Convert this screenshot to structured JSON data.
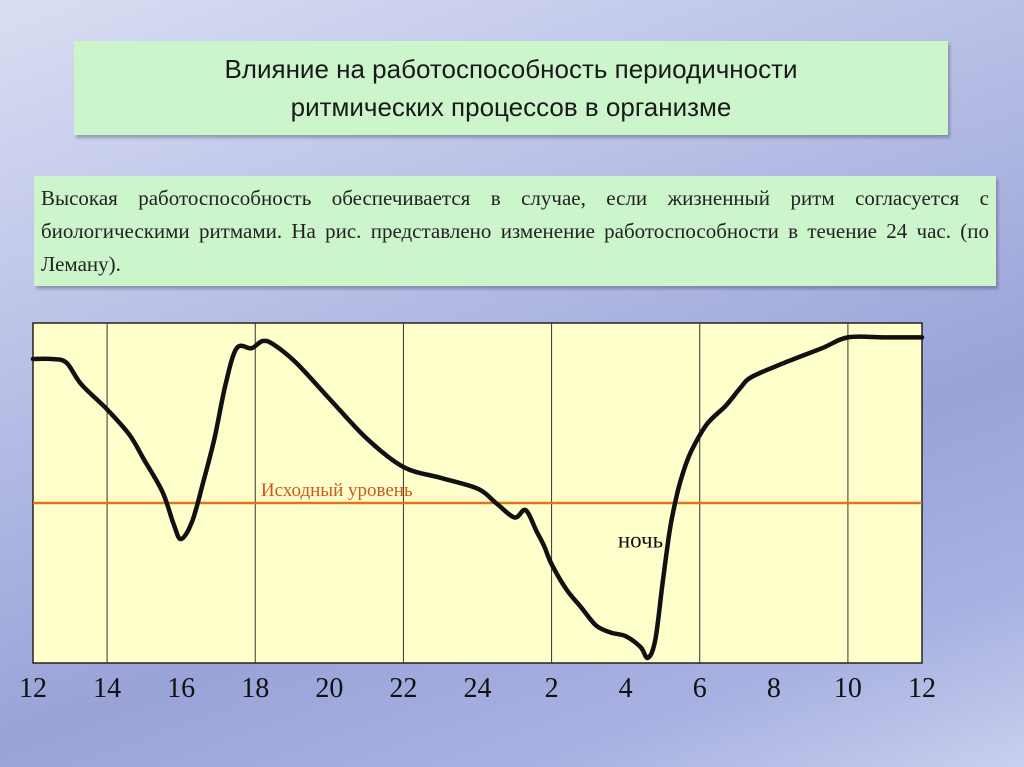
{
  "title": {
    "line1": "Влияние на работоспособность периодичности",
    "line2": "ритмических процессов в организме"
  },
  "description": "Высокая работоспособность обеспечивается в случае, если жизненный ритм согласуется с биологическими ритмами. На рис. представлено изменение работоспособности в течение 24 час. (по Леману).",
  "colors": {
    "plot_bg": "#ffffcc",
    "curve": "#111111",
    "baseline": "#e0761c",
    "baseline_label": "#cc5a1a",
    "title_box": "#ccf5cc"
  },
  "chart_data": {
    "type": "line",
    "title": "",
    "xlabel": "",
    "ylabel": "",
    "x_ticks": [
      "12",
      "14",
      "16",
      "18",
      "20",
      "22",
      "24",
      "2",
      "4",
      "6",
      "8",
      "10",
      "12"
    ],
    "x_unit": "hours elapsed from 12:00",
    "xlim": [
      0,
      24
    ],
    "y_scale": "relative (baseline = 0)",
    "ylim": [
      -4.6,
      5.3
    ],
    "grid": "vertical lines at hours 2, 6, 10, 14, 18, 22",
    "baseline": {
      "label": "Исходный уровень",
      "value": 0
    },
    "annotations": [
      {
        "text": "ночь",
        "x": 16.4,
        "y": -1.1
      }
    ],
    "series": [
      {
        "x": [
          0,
          0.5,
          0.9,
          1.3,
          2.0,
          2.6,
          3.0,
          3.5,
          3.8,
          4.0,
          4.3,
          4.6,
          4.9,
          5.2,
          5.5,
          5.9,
          6.2,
          6.5,
          7.1,
          8.0,
          9.0,
          10.0,
          11.0,
          12.0,
          12.5,
          13.0,
          13.3,
          13.6,
          13.8,
          14.0,
          14.4,
          14.8,
          15.2,
          15.6,
          16.0,
          16.4,
          16.6,
          16.8,
          17.0,
          17.2,
          17.4,
          17.6,
          17.8,
          18.2,
          18.7,
          19.1,
          19.4,
          20.3,
          21.3,
          22.0,
          23.0,
          24.0
        ],
        "y": [
          4.0,
          4.0,
          3.9,
          3.3,
          2.6,
          1.9,
          1.2,
          0.3,
          -0.6,
          -1.0,
          -0.5,
          0.6,
          1.8,
          3.3,
          4.3,
          4.3,
          4.5,
          4.4,
          3.9,
          2.9,
          1.8,
          1.0,
          0.7,
          0.4,
          0.0,
          -0.4,
          -0.2,
          -0.8,
          -1.2,
          -1.7,
          -2.4,
          -2.9,
          -3.4,
          -3.6,
          -3.7,
          -4.0,
          -4.3,
          -3.8,
          -2.2,
          -0.7,
          0.3,
          1.0,
          1.5,
          2.2,
          2.7,
          3.2,
          3.5,
          3.9,
          4.3,
          4.6,
          4.6,
          4.6
        ]
      }
    ]
  }
}
